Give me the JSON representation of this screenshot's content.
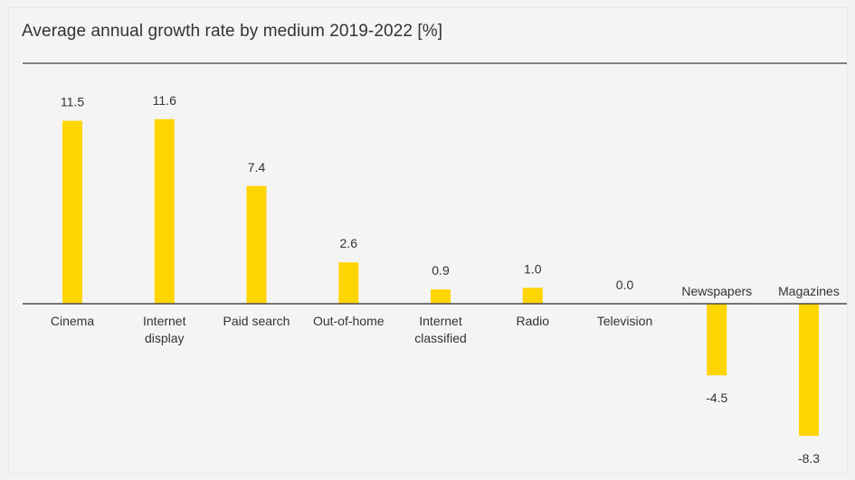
{
  "chart_data": {
    "type": "bar",
    "title": "Average annual growth rate by medium 2019-2022 [%]",
    "xlabel": "",
    "ylabel": "",
    "categories": [
      [
        "Cinema"
      ],
      [
        "Internet",
        "display"
      ],
      [
        "Paid search"
      ],
      [
        "Out-of-home"
      ],
      [
        "Internet",
        "classified"
      ],
      [
        "Radio"
      ],
      [
        "Television"
      ],
      [
        "Newspapers"
      ],
      [
        "Magazines"
      ]
    ],
    "values": [
      11.5,
      11.6,
      7.4,
      2.6,
      0.9,
      1.0,
      0.0,
      -4.5,
      -8.3
    ],
    "value_labels": [
      "11.5",
      "11.6",
      "7.4",
      "2.6",
      "0.9",
      "1.0",
      "0.0",
      "-4.5",
      "-8.3"
    ],
    "bar_color": "#ffd500",
    "axis_color": "#555555",
    "grid": false,
    "legend": "none"
  }
}
